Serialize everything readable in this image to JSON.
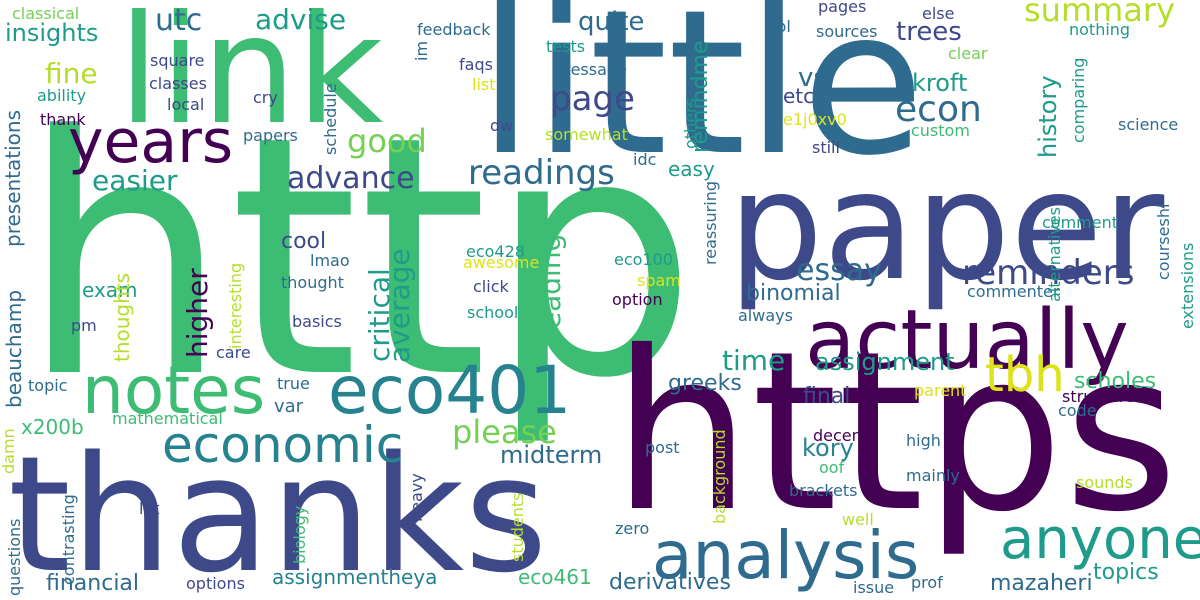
{
  "words": [
    {
      "text": "http",
      "color": "#3dbc74",
      "rot": 0
    },
    {
      "text": "https",
      "color": "#440154",
      "rot": 0
    },
    {
      "text": "little",
      "color": "#2f6b8e",
      "rot": 0
    },
    {
      "text": "paper",
      "color": "#3e4989",
      "rot": 0
    },
    {
      "text": "thanks",
      "color": "#3e4989",
      "rot": 0
    },
    {
      "text": "link",
      "color": "#3dbc74",
      "rot": 0
    },
    {
      "text": "actually",
      "color": "#440154",
      "rot": 0
    },
    {
      "text": "notes",
      "color": "#3dbc74",
      "rot": 0
    },
    {
      "text": "eco401",
      "color": "#26828e",
      "rot": 0
    },
    {
      "text": "analysis",
      "color": "#2f6b8e",
      "rot": 0
    },
    {
      "text": "economic",
      "color": "#26828e",
      "rot": 0
    },
    {
      "text": "years",
      "color": "#440154",
      "rot": 0
    },
    {
      "text": "anyone",
      "color": "#1e9b8a",
      "rot": 0
    },
    {
      "text": "tbh",
      "color": "#dde318",
      "rot": 0
    },
    {
      "text": "reminders",
      "color": "#3e4989",
      "rot": 0
    },
    {
      "text": "readings",
      "color": "#2f6b8e",
      "rot": 0
    },
    {
      "text": "please",
      "color": "#75d054",
      "rot": 0
    },
    {
      "text": "advance",
      "color": "#3e4989",
      "rot": 0
    },
    {
      "text": "page",
      "color": "#3e4989",
      "rot": 0
    },
    {
      "text": "essay",
      "color": "#2f6b8e",
      "rot": 0
    },
    {
      "text": "econ",
      "color": "#2f6b8e",
      "rot": 0
    },
    {
      "text": "summary",
      "color": "#b5de2b",
      "rot": 0
    },
    {
      "text": "good",
      "color": "#75d054",
      "rot": 0
    },
    {
      "text": "advise",
      "color": "#1e9b8a",
      "rot": 0
    },
    {
      "text": "utc",
      "color": "#2f6b8e",
      "rot": 0
    },
    {
      "text": "fine",
      "color": "#b5de2b",
      "rot": 0
    },
    {
      "text": "easier",
      "color": "#1e9b8a",
      "rot": 0
    },
    {
      "text": "binomial",
      "color": "#2f6b8e",
      "rot": 0
    },
    {
      "text": "time",
      "color": "#1e9b8a",
      "rot": 0
    },
    {
      "text": "assignment",
      "color": "#1e9b8a",
      "rot": 0
    },
    {
      "text": "quite",
      "color": "#2f6b8e",
      "rot": 0
    },
    {
      "text": "trees",
      "color": "#3e4989",
      "rot": 0
    },
    {
      "text": "kroft",
      "color": "#1e9b8a",
      "rot": 0
    },
    {
      "text": "vs",
      "color": "#2f6b8e",
      "rot": 0
    },
    {
      "text": "etc",
      "color": "#3e4989",
      "rot": 0
    },
    {
      "text": "insights",
      "color": "#1e9b8a",
      "rot": 0
    },
    {
      "text": "cool",
      "color": "#3e4989",
      "rot": 0
    },
    {
      "text": "easy",
      "color": "#1e9b8a",
      "rot": 0
    },
    {
      "text": "midterm",
      "color": "#2f6b8e",
      "rot": 0
    },
    {
      "text": "greeks",
      "color": "#2f6b8e",
      "rot": 0
    },
    {
      "text": "kory",
      "color": "#26828e",
      "rot": 0
    },
    {
      "text": "final",
      "color": "#3e4989",
      "rot": 0
    },
    {
      "text": "scholes",
      "color": "#3dbc74",
      "rot": 0
    },
    {
      "text": "structure",
      "color": "#440154",
      "rot": 0
    },
    {
      "text": "mazaheri",
      "color": "#2f6b8e",
      "rot": 0
    },
    {
      "text": "topics",
      "color": "#1e9b8a",
      "rot": 0
    },
    {
      "text": "derivatives",
      "color": "#2f6b8e",
      "rot": 0
    },
    {
      "text": "eco461",
      "color": "#3dbc74",
      "rot": 0
    },
    {
      "text": "financial",
      "color": "#2f6b8e",
      "rot": 0
    },
    {
      "text": "assignmentheya",
      "color": "#26828e",
      "rot": 0
    },
    {
      "text": "x200b",
      "color": "#3dbc74",
      "rot": 0
    },
    {
      "text": "var",
      "color": "#2f6b8e",
      "rot": 0
    },
    {
      "text": "exam",
      "color": "#1e9b8a",
      "rot": 0
    },
    {
      "text": "sources",
      "color": "#2f6b8e",
      "rot": 0
    },
    {
      "text": "pages",
      "color": "#3e4989",
      "rot": 0
    },
    {
      "text": "else",
      "color": "#3e4989",
      "rot": 0
    },
    {
      "text": "feedback",
      "color": "#2f6b8e",
      "rot": 0
    },
    {
      "text": "classical",
      "color": "#75d054",
      "rot": 0
    },
    {
      "text": "square",
      "color": "#3e4989",
      "rot": 0
    },
    {
      "text": "classes",
      "color": "#3e4989",
      "rot": 0
    },
    {
      "text": "ability",
      "color": "#1e9b8a",
      "rot": 0
    },
    {
      "text": "local",
      "color": "#3e4989",
      "rot": 0
    },
    {
      "text": "cry",
      "color": "#3e4989",
      "rot": 0
    },
    {
      "text": "thank",
      "color": "#440154",
      "rot": 0
    },
    {
      "text": "papers",
      "color": "#2f6b8e",
      "rot": 0
    },
    {
      "text": "faqs",
      "color": "#3e4989",
      "rot": 0
    },
    {
      "text": "tests",
      "color": "#1e9b8a",
      "rot": 0
    },
    {
      "text": "message",
      "color": "#2f6b8e",
      "rot": 0
    },
    {
      "text": "list",
      "color": "#dde318",
      "rot": 0
    },
    {
      "text": "somewhat",
      "color": "#b5de2b",
      "rot": 0
    },
    {
      "text": "dw",
      "color": "#3e4989",
      "rot": 0
    },
    {
      "text": "ppl",
      "color": "#2f6b8e",
      "rot": 0
    },
    {
      "text": "nothing",
      "color": "#1e9b8a",
      "rot": 0
    },
    {
      "text": "clear",
      "color": "#75d054",
      "rot": 0
    },
    {
      "text": "e1j0xv0",
      "color": "#dde318",
      "rot": 0
    },
    {
      "text": "custom",
      "color": "#3dbc74",
      "rot": 0
    },
    {
      "text": "still",
      "color": "#3e4989",
      "rot": 0
    },
    {
      "text": "science",
      "color": "#2f6b8e",
      "rot": 0
    },
    {
      "text": "comment",
      "color": "#1e9b8a",
      "rot": 0
    },
    {
      "text": "commenter",
      "color": "#2f6b8e",
      "rot": 0
    },
    {
      "text": "always",
      "color": "#2f6b8e",
      "rot": 0
    },
    {
      "text": "parent",
      "color": "#dde318",
      "rot": 0
    },
    {
      "text": "code",
      "color": "#2f6b8e",
      "rot": 0
    },
    {
      "text": "decent",
      "color": "#440154",
      "rot": 0
    },
    {
      "text": "high",
      "color": "#2f6b8e",
      "rot": 0
    },
    {
      "text": "mainly",
      "color": "#2f6b8e",
      "rot": 0
    },
    {
      "text": "oof",
      "color": "#3dbc74",
      "rot": 0
    },
    {
      "text": "brackets",
      "color": "#2f6b8e",
      "rot": 0
    },
    {
      "text": "sounds",
      "color": "#b5de2b",
      "rot": 0
    },
    {
      "text": "well",
      "color": "#b5de2b",
      "rot": 0
    },
    {
      "text": "post",
      "color": "#2f6b8e",
      "rot": 0
    },
    {
      "text": "zero",
      "color": "#2f6b8e",
      "rot": 0
    },
    {
      "text": "issue",
      "color": "#2f6b8e",
      "rot": 0
    },
    {
      "text": "prof",
      "color": "#2f6b8e",
      "rot": 0
    },
    {
      "text": "options",
      "color": "#3e4989",
      "rot": 0
    },
    {
      "text": "lot",
      "color": "#3e4989",
      "rot": 0
    },
    {
      "text": "topic",
      "color": "#2f6b8e",
      "rot": 0
    },
    {
      "text": "true",
      "color": "#2f6b8e",
      "rot": 0
    },
    {
      "text": "mathematical",
      "color": "#3dbc74",
      "rot": 0
    },
    {
      "text": "pm",
      "color": "#3e4989",
      "rot": 0
    },
    {
      "text": "basics",
      "color": "#3e4989",
      "rot": 0
    },
    {
      "text": "care",
      "color": "#3e4989",
      "rot": 0
    },
    {
      "text": "thought",
      "color": "#2f6b8e",
      "rot": 0
    },
    {
      "text": "lmao",
      "color": "#2f6b8e",
      "rot": 0
    },
    {
      "text": "click",
      "color": "#3e4989",
      "rot": 0
    },
    {
      "text": "school",
      "color": "#1e9b8a",
      "rot": 0
    },
    {
      "text": "option",
      "color": "#440154",
      "rot": 0
    },
    {
      "text": "spam",
      "color": "#dde318",
      "rot": 0
    },
    {
      "text": "eco100",
      "color": "#1e9b8a",
      "rot": 0
    },
    {
      "text": "awesome",
      "color": "#dde318",
      "rot": 0
    },
    {
      "text": "eco428",
      "color": "#1e9b8a",
      "rot": 0
    },
    {
      "text": "idc",
      "color": "#2f6b8e",
      "rot": 0
    },
    {
      "text": "higher",
      "color": "#440154",
      "rot": -90
    },
    {
      "text": "critical",
      "color": "#1e9b8a",
      "rot": -90
    },
    {
      "text": "average",
      "color": "#1e9b8a",
      "rot": -90
    },
    {
      "text": "reading",
      "color": "#3dbc74",
      "rot": -90
    },
    {
      "text": "history",
      "color": "#1e9b8a",
      "rot": -90
    },
    {
      "text": "remindme",
      "color": "#1e9b8a",
      "rot": -90
    },
    {
      "text": "presentations",
      "color": "#2f6b8e",
      "rot": -90
    },
    {
      "text": "beauchamp",
      "color": "#2f6b8e",
      "rot": -90
    },
    {
      "text": "thoughts",
      "color": "#b5de2b",
      "rot": -90
    },
    {
      "text": "schedule",
      "color": "#2f6b8e",
      "rot": -90
    },
    {
      "text": "im",
      "color": "#2f6b8e",
      "rot": -90
    },
    {
      "text": "others",
      "color": "#1e9b8a",
      "rot": -90
    },
    {
      "text": "reassuring",
      "color": "#2f6b8e",
      "rot": -90
    },
    {
      "text": "comparing",
      "color": "#1e9b8a",
      "rot": -90
    },
    {
      "text": "alternatives",
      "color": "#1e9b8a",
      "rot": -90
    },
    {
      "text": "courseshi",
      "color": "#2f6b8e",
      "rot": -90
    },
    {
      "text": "extensions",
      "color": "#1e9b8a",
      "rot": -90
    },
    {
      "text": "interesting",
      "color": "#b5de2b",
      "rot": -90
    },
    {
      "text": "damn",
      "color": "#b5de2b",
      "rot": -90
    },
    {
      "text": "questions",
      "color": "#2f6b8e",
      "rot": -90
    },
    {
      "text": "contrasting",
      "color": "#2f6b8e",
      "rot": -90
    },
    {
      "text": "biology",
      "color": "#3dbc74",
      "rot": -90
    },
    {
      "text": "students",
      "color": "#b5de2b",
      "rot": -90
    },
    {
      "text": "heavy",
      "color": "#3e4989",
      "rot": -90
    },
    {
      "text": "background",
      "color": "#b5de2b",
      "rot": -90
    }
  ]
}
